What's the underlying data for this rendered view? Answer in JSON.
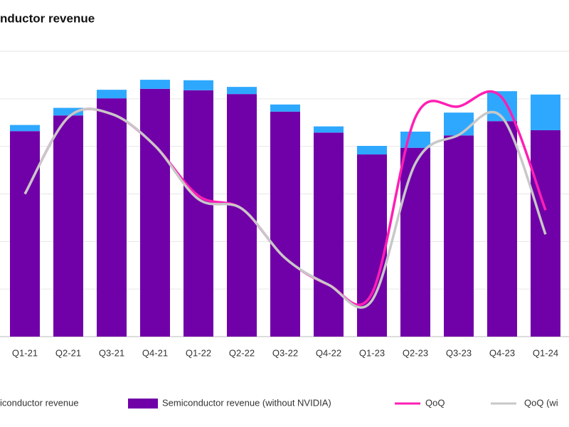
{
  "chart_data": {
    "type": "bar",
    "title": "nductor revenue",
    "categories": [
      "Q1-21",
      "Q2-21",
      "Q3-21",
      "Q4-21",
      "Q1-22",
      "Q2-22",
      "Q3-22",
      "Q4-22",
      "Q1-23",
      "Q2-23",
      "Q3-23",
      "Q4-23",
      "Q1-24"
    ],
    "series": [
      {
        "name": "Semiconductor revenue (without NVIDIA)",
        "color": "#7000a8",
        "values": [
          43.2,
          46.5,
          50.1,
          52.1,
          51.8,
          51.0,
          47.3,
          42.9,
          38.3,
          39.7,
          42.3,
          45.3,
          43.4
        ]
      },
      {
        "name": "iconductor revenue",
        "color": "#2ea8ff",
        "values": [
          1.3,
          1.6,
          1.8,
          1.9,
          2.1,
          1.5,
          1.5,
          1.3,
          1.8,
          3.4,
          4.8,
          6.3,
          7.5
        ]
      },
      {
        "name": "QoQ",
        "color": "#ff1fb4",
        "axis": "y2",
        "values": [
          30.0,
          46.1,
          46.8,
          40.1,
          29.6,
          26.9,
          16.5,
          10.9,
          9.1,
          46.1,
          48.4,
          50.2,
          26.6
        ]
      },
      {
        "name": "QoQ (wi",
        "color": "#c8c8c8",
        "axis": "y2",
        "values": [
          30.0,
          46.1,
          46.8,
          40.1,
          28.9,
          26.9,
          16.5,
          10.9,
          7.6,
          36.4,
          42.4,
          46.1,
          21.5
        ]
      }
    ],
    "ylim": [
      0,
      60
    ],
    "y2lim": [
      0,
      60
    ],
    "grid": true
  }
}
